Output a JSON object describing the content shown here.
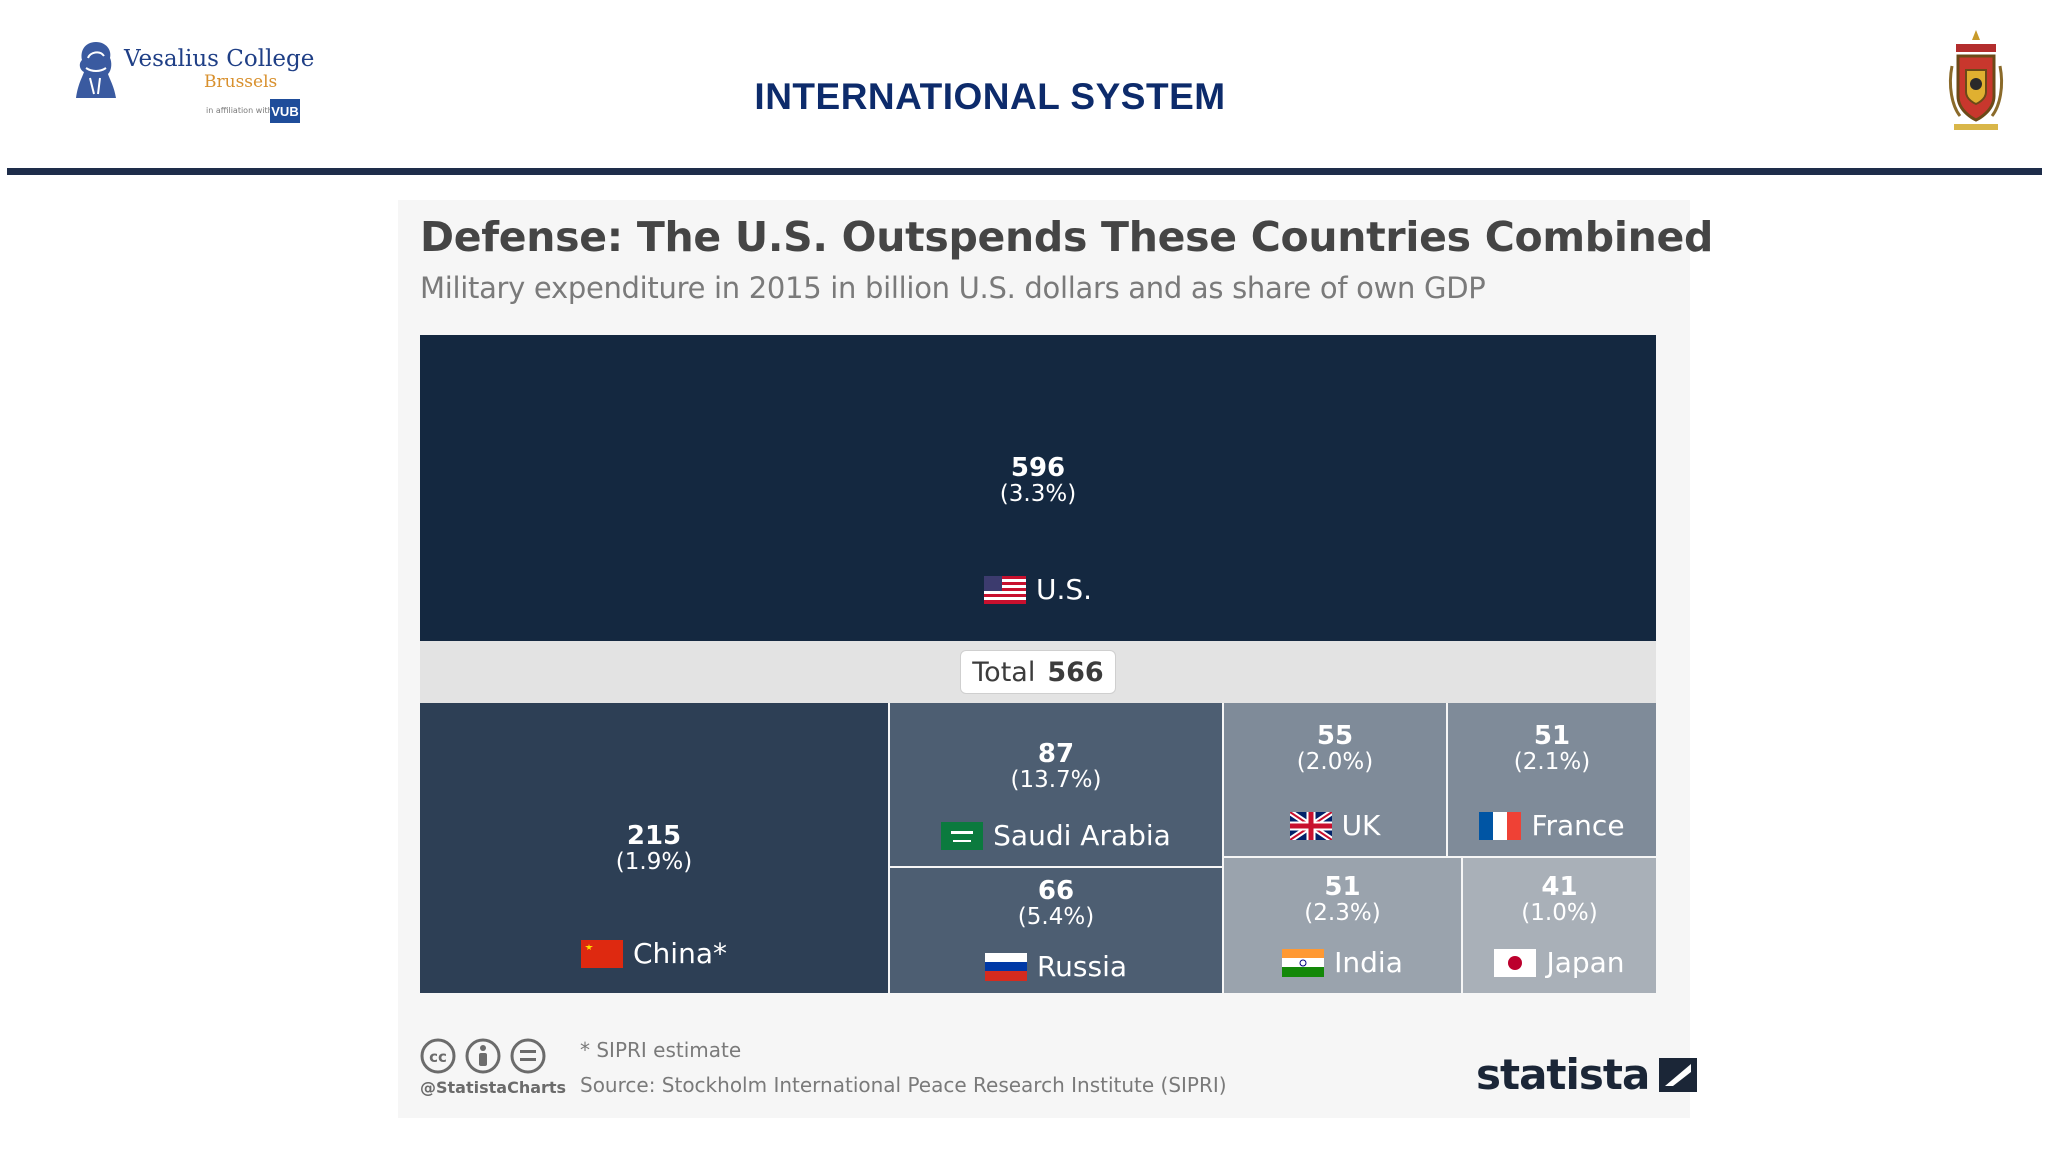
{
  "header": {
    "logo_name": "Vesalius College",
    "logo_city": "Brussels",
    "logo_affiliation": "in affiliation with",
    "logo_vub": "VUB",
    "slide_title": "INTERNATIONAL SYSTEM"
  },
  "chart_data": {
    "type": "treemap",
    "title": "Defense: The U.S. Outspends These Countries Combined",
    "subtitle": "Military expenditure in 2015 in billion U.S. dollars and as share of own GDP",
    "unit": "billion U.S. dollars",
    "main": {
      "country": "U.S.",
      "value": 596,
      "share": "(3.3%)"
    },
    "total_label": "Total",
    "total_value": 566,
    "items": [
      {
        "country": "China*",
        "value": 215,
        "share": "(1.9%)"
      },
      {
        "country": "Saudi Arabia",
        "value": 87,
        "share": "(13.7%)"
      },
      {
        "country": "Russia",
        "value": 66,
        "share": "(5.4%)"
      },
      {
        "country": "UK",
        "value": 55,
        "share": "(2.0%)"
      },
      {
        "country": "France",
        "value": 51,
        "share": "(2.1%)"
      },
      {
        "country": "India",
        "value": 51,
        "share": "(2.3%)"
      },
      {
        "country": "Japan",
        "value": 41,
        "share": "(1.0%)"
      }
    ]
  },
  "footer": {
    "handle": "@StatistaCharts",
    "note": "* SIPRI estimate",
    "source": "Source: Stockholm International Peace Research Institute (SIPRI)",
    "brand": "statista"
  },
  "colors": {
    "us": "#142840",
    "china": "#2d3f55",
    "saudi_russia": "#4d5e72",
    "uk_france": "#7f8b99",
    "india": "#9aa3ad",
    "japan": "#a9b0b8",
    "rule": "#1e2d4a",
    "slide_title": "#0d2b6b"
  }
}
